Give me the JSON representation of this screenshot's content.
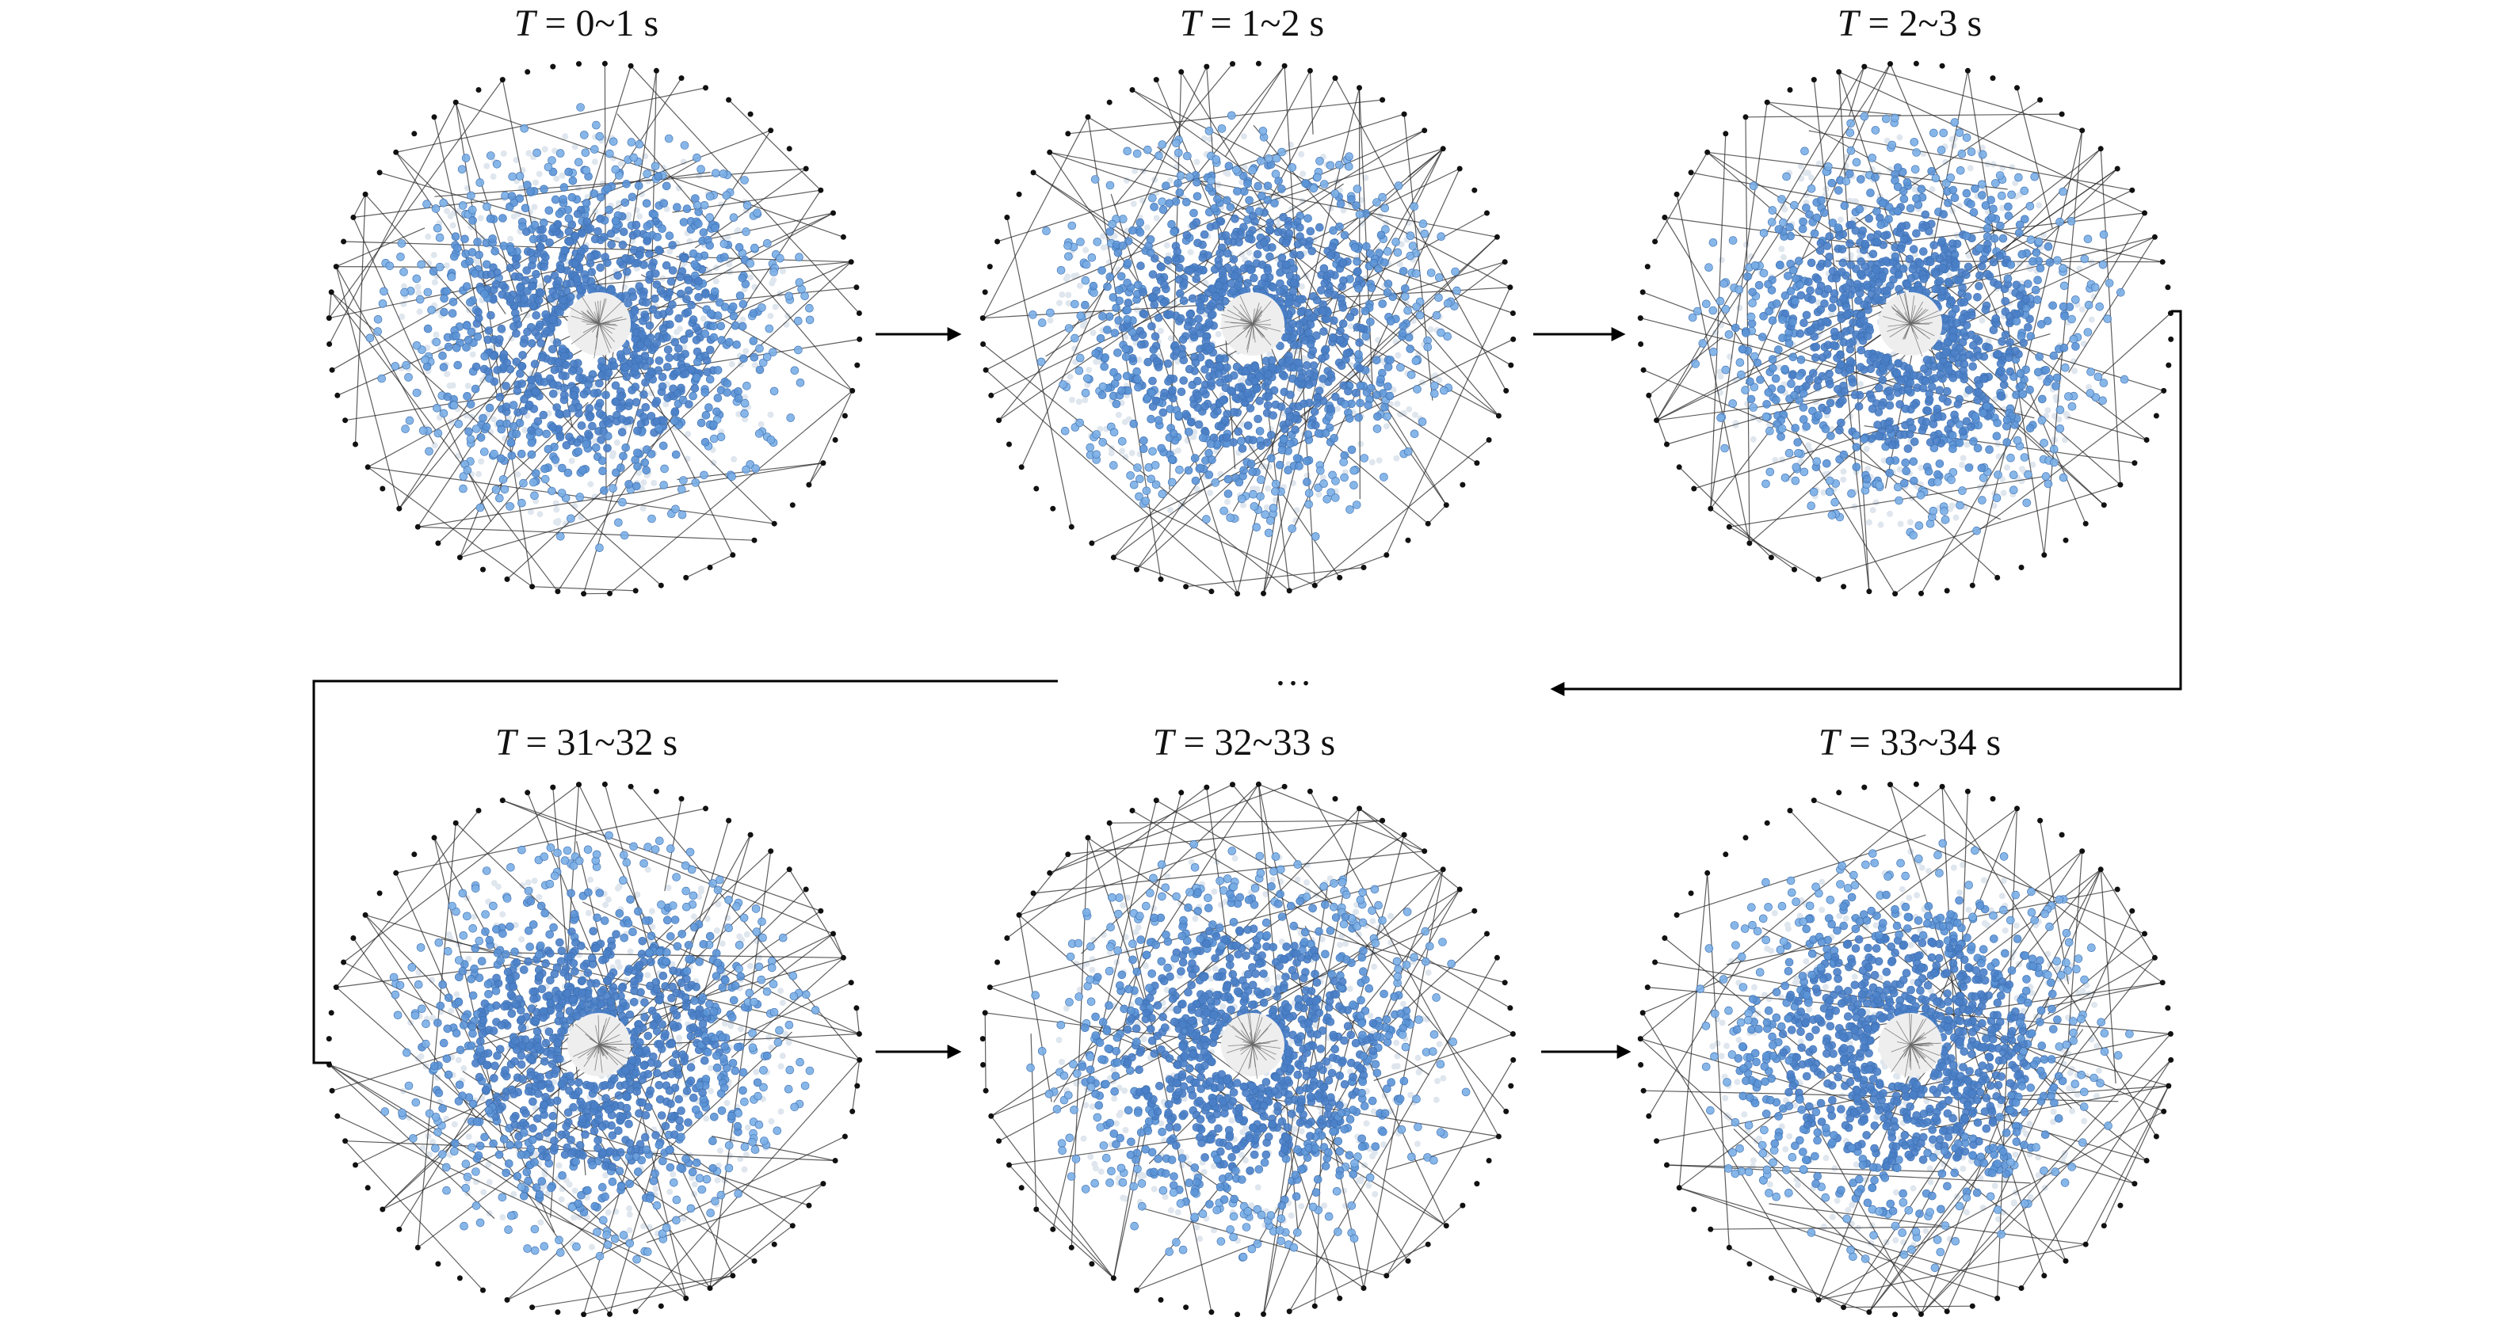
{
  "figure": {
    "variable": "T",
    "ellipsis": "…",
    "panels": [
      {
        "name": "panel-t-0-1",
        "range": " = 0~1 s",
        "seed": 11
      },
      {
        "name": "panel-t-1-2",
        "range": " = 1~2 s",
        "seed": 23
      },
      {
        "name": "panel-t-2-3",
        "range": " = 2~3 s",
        "seed": 37
      },
      {
        "name": "panel-t-31-32",
        "range": " = 31~32 s",
        "seed": 41
      },
      {
        "name": "panel-t-32-33",
        "range": " = 32~33 s",
        "seed": 53
      },
      {
        "name": "panel-t-33-34",
        "range": " = 33~34 s",
        "seed": 67
      }
    ],
    "colors": {
      "node_core": "#4a7fc8",
      "node_mid": "#5b93d6",
      "node_outer": "#7aaee6",
      "node_pale": "#dfe6ee",
      "edge": "#2a2a2a",
      "peripheral_node": "#111111",
      "arrow": "#000000"
    }
  }
}
